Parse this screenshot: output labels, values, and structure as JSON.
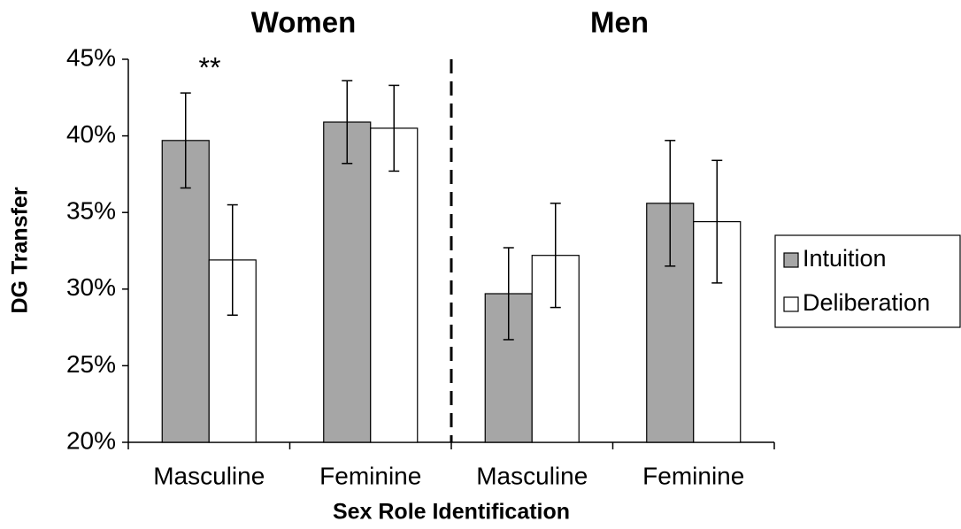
{
  "chart_data": {
    "type": "bar",
    "groups": [
      "Women",
      "Men"
    ],
    "categories": [
      "Masculine",
      "Feminine",
      "Masculine",
      "Feminine"
    ],
    "x_label": "Sex Role Identification",
    "y_label": "DG Transfer",
    "series": [
      {
        "name": "Intuition",
        "color": "#a6a6a6",
        "values": [
          39.7,
          40.9,
          29.7,
          35.6
        ],
        "errors": [
          3.1,
          2.7,
          3.0,
          4.1
        ]
      },
      {
        "name": "Deliberation",
        "color": "#ffffff",
        "values": [
          31.9,
          40.5,
          32.2,
          34.4
        ],
        "errors": [
          3.6,
          2.8,
          3.4,
          4.0
        ]
      }
    ],
    "annotation": "**",
    "ylim": [
      20,
      45
    ],
    "yticks": [
      {
        "value": 20,
        "label": "20%"
      },
      {
        "value": 25,
        "label": "25%"
      },
      {
        "value": 30,
        "label": "30%"
      },
      {
        "value": 35,
        "label": "35%"
      },
      {
        "value": 40,
        "label": "40%"
      },
      {
        "value": 45,
        "label": "45%"
      }
    ],
    "legend": "right"
  }
}
